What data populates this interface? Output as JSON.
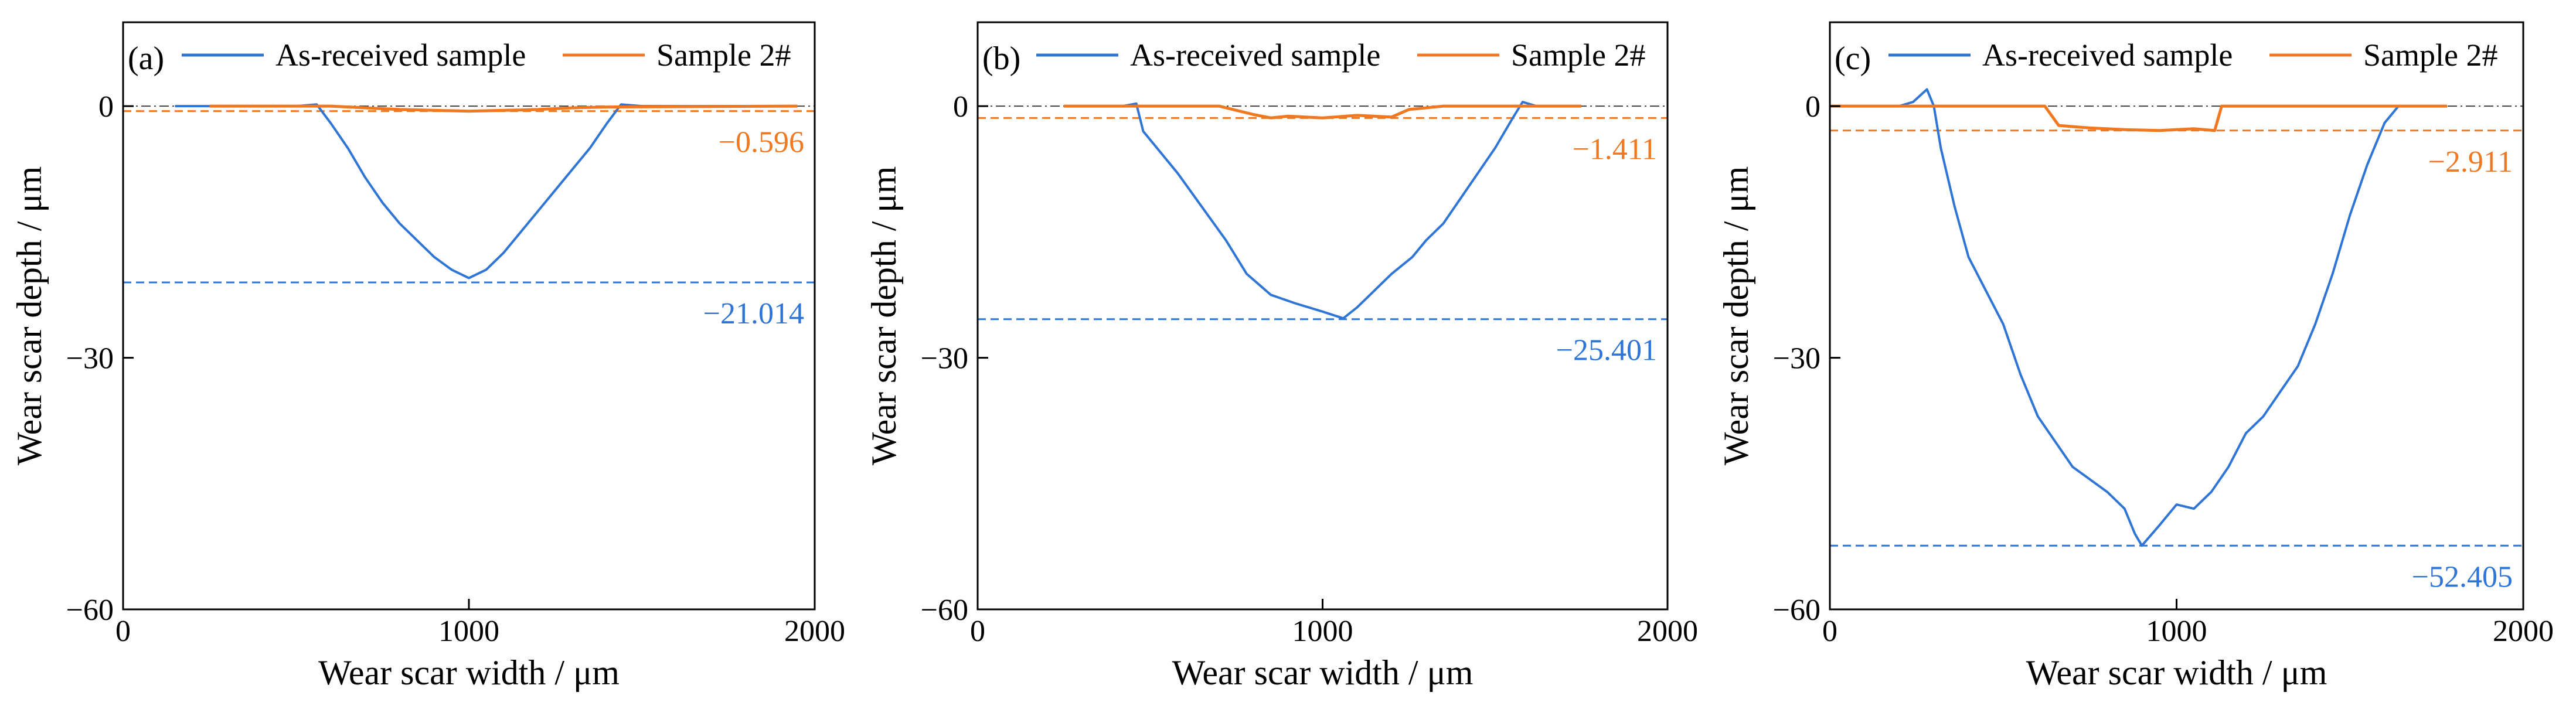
{
  "chart_data": [
    {
      "type": "line",
      "panel": "(a)",
      "xlabel": "Wear scar width / μm",
      "ylabel": "Wear scar depth / μm",
      "xlim": [
        0,
        2000
      ],
      "ylim": [
        -60,
        10
      ],
      "xticks": [
        0,
        1000,
        2000
      ],
      "yticks": [
        0,
        -30,
        -60
      ],
      "xtick_labels": [
        "0",
        "1000",
        "2000"
      ],
      "ytick_labels": [
        "0",
        "−30",
        "−60"
      ],
      "legend": [
        "As-received sample",
        "Sample 2#"
      ],
      "series": [
        {
          "name": "As-received sample",
          "color": "#2e75d6",
          "points": [
            [
              150,
              0
            ],
            [
              500,
              0
            ],
            [
              560,
              0.2
            ],
            [
              600,
              -2
            ],
            [
              650,
              -5
            ],
            [
              700,
              -8.5
            ],
            [
              750,
              -11.5
            ],
            [
              800,
              -14
            ],
            [
              850,
              -16
            ],
            [
              900,
              -18
            ],
            [
              950,
              -19.5
            ],
            [
              1000,
              -20.5
            ],
            [
              1050,
              -19.5
            ],
            [
              1100,
              -17.5
            ],
            [
              1150,
              -15
            ],
            [
              1200,
              -12.5
            ],
            [
              1250,
              -10
            ],
            [
              1300,
              -7.5
            ],
            [
              1350,
              -5
            ],
            [
              1400,
              -2
            ],
            [
              1440,
              0.2
            ],
            [
              1500,
              0
            ],
            [
              1950,
              0
            ]
          ]
        },
        {
          "name": "Sample 2#",
          "color": "#f07820",
          "points": [
            [
              250,
              0
            ],
            [
              600,
              0
            ],
            [
              700,
              -0.2
            ],
            [
              800,
              -0.4
            ],
            [
              900,
              -0.5
            ],
            [
              1000,
              -0.6
            ],
            [
              1100,
              -0.5
            ],
            [
              1200,
              -0.4
            ],
            [
              1300,
              -0.2
            ],
            [
              1400,
              -0.1
            ],
            [
              1950,
              0
            ]
          ]
        }
      ],
      "reference_lines": [
        {
          "series": "Sample 2#",
          "value": -0.596,
          "label": "−0.596",
          "color": "#f07820"
        },
        {
          "series": "As-received sample",
          "value": -21.014,
          "label": "−21.014",
          "color": "#2e75d6"
        }
      ]
    },
    {
      "type": "line",
      "panel": "(b)",
      "xlabel": "Wear scar width / μm",
      "ylabel": "Wear scar depth / μm",
      "xlim": [
        0,
        2000
      ],
      "ylim": [
        -60,
        10
      ],
      "xticks": [
        0,
        1000,
        2000
      ],
      "yticks": [
        0,
        -30,
        -60
      ],
      "xtick_labels": [
        "0",
        "1000",
        "2000"
      ],
      "ytick_labels": [
        "0",
        "−30",
        "−60"
      ],
      "legend": [
        "As-received sample",
        "Sample 2#"
      ],
      "series": [
        {
          "name": "As-received sample",
          "color": "#2e75d6",
          "points": [
            [
              260,
              0
            ],
            [
              420,
              0
            ],
            [
              460,
              0.3
            ],
            [
              480,
              -3
            ],
            [
              520,
              -5
            ],
            [
              580,
              -8
            ],
            [
              650,
              -12
            ],
            [
              720,
              -16
            ],
            [
              780,
              -20
            ],
            [
              850,
              -22.5
            ],
            [
              920,
              -23.5
            ],
            [
              1000,
              -24.5
            ],
            [
              1060,
              -25.3
            ],
            [
              1100,
              -24
            ],
            [
              1150,
              -22
            ],
            [
              1200,
              -20
            ],
            [
              1260,
              -18
            ],
            [
              1300,
              -16
            ],
            [
              1350,
              -14
            ],
            [
              1400,
              -11
            ],
            [
              1450,
              -8
            ],
            [
              1500,
              -5
            ],
            [
              1550,
              -1.5
            ],
            [
              1580,
              0.5
            ],
            [
              1620,
              0
            ],
            [
              1750,
              0
            ]
          ]
        },
        {
          "name": "Sample 2#",
          "color": "#f07820",
          "points": [
            [
              250,
              0
            ],
            [
              700,
              0
            ],
            [
              800,
              -1
            ],
            [
              850,
              -1.4
            ],
            [
              900,
              -1.2
            ],
            [
              1000,
              -1.4
            ],
            [
              1100,
              -1.1
            ],
            [
              1200,
              -1.3
            ],
            [
              1250,
              -0.4
            ],
            [
              1350,
              0
            ],
            [
              1750,
              0
            ]
          ]
        }
      ],
      "reference_lines": [
        {
          "series": "Sample 2#",
          "value": -1.411,
          "label": "−1.411",
          "color": "#f07820"
        },
        {
          "series": "As-received sample",
          "value": -25.401,
          "label": "−25.401",
          "color": "#2e75d6"
        }
      ]
    },
    {
      "type": "line",
      "panel": "(c)",
      "xlabel": "Wear scar width / μm",
      "ylabel": "Wear scar depth / μm",
      "xlim": [
        0,
        2000
      ],
      "ylim": [
        -60,
        10
      ],
      "xticks": [
        0,
        1000,
        2000
      ],
      "yticks": [
        0,
        -30,
        -60
      ],
      "xtick_labels": [
        "0",
        "1000",
        "2000"
      ],
      "ytick_labels": [
        "0",
        "−30",
        "−60"
      ],
      "legend": [
        "As-received sample",
        "Sample 2#"
      ],
      "series": [
        {
          "name": "As-received sample",
          "color": "#2e75d6",
          "points": [
            [
              0,
              0
            ],
            [
              200,
              0
            ],
            [
              240,
              0.5
            ],
            [
              280,
              2
            ],
            [
              300,
              0
            ],
            [
              320,
              -5
            ],
            [
              360,
              -12
            ],
            [
              400,
              -18
            ],
            [
              450,
              -22
            ],
            [
              500,
              -26
            ],
            [
              550,
              -32
            ],
            [
              600,
              -37
            ],
            [
              650,
              -40
            ],
            [
              700,
              -43
            ],
            [
              750,
              -44.5
            ],
            [
              800,
              -46
            ],
            [
              850,
              -48
            ],
            [
              880,
              -51
            ],
            [
              900,
              -52.4
            ],
            [
              950,
              -50
            ],
            [
              1000,
              -47.5
            ],
            [
              1050,
              -48
            ],
            [
              1100,
              -46
            ],
            [
              1150,
              -43
            ],
            [
              1200,
              -39
            ],
            [
              1250,
              -37
            ],
            [
              1300,
              -34
            ],
            [
              1350,
              -31
            ],
            [
              1400,
              -26
            ],
            [
              1450,
              -20
            ],
            [
              1500,
              -13
            ],
            [
              1550,
              -7
            ],
            [
              1600,
              -2
            ],
            [
              1640,
              0
            ],
            [
              1780,
              0
            ]
          ]
        },
        {
          "name": "Sample 2#",
          "color": "#f07820",
          "points": [
            [
              0,
              0
            ],
            [
              620,
              0
            ],
            [
              660,
              -2.3
            ],
            [
              750,
              -2.6
            ],
            [
              850,
              -2.8
            ],
            [
              950,
              -2.9
            ],
            [
              1050,
              -2.7
            ],
            [
              1110,
              -2.9
            ],
            [
              1130,
              0
            ],
            [
              1780,
              0
            ]
          ]
        }
      ],
      "reference_lines": [
        {
          "series": "Sample 2#",
          "value": -2.911,
          "label": "−2.911",
          "color": "#f07820"
        },
        {
          "series": "As-received sample",
          "value": -52.405,
          "label": "−52.405",
          "color": "#2e75d6"
        }
      ]
    }
  ]
}
